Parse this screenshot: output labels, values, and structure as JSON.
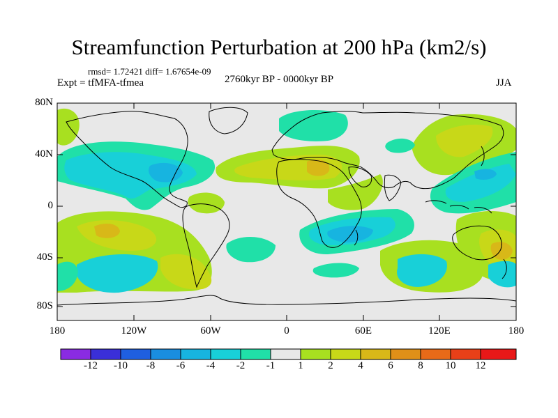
{
  "title": "Streamfunction Perturbation at 200 hPa (km2/s)",
  "stats": "rmsd= 1.72421 diff= 1.67654e-09",
  "experiment": "Expt = tfMFA-tfmea",
  "period": "2760kyr BP - 0000kyr BP",
  "season": "JJA",
  "y_axis_labels": [
    "80N",
    "40N",
    "0",
    "40S",
    "80S"
  ],
  "x_axis_labels": [
    "180",
    "120W",
    "60W",
    "0",
    "60E",
    "120E",
    "180"
  ],
  "colorbar": {
    "tick_labels": [
      "-12",
      "-10",
      "-8",
      "-6",
      "-4",
      "-2",
      "-1",
      "1",
      "2",
      "4",
      "6",
      "8",
      "10",
      "12"
    ],
    "colors": [
      "#8a2be2",
      "#3a2fd8",
      "#1f5fe0",
      "#1a8ee0",
      "#17b4e0",
      "#18d0d8",
      "#20e0a8",
      "#e8e8e8",
      "#a8e020",
      "#c8d818",
      "#d8b818",
      "#e09018",
      "#e86a18",
      "#e84018",
      "#e81818"
    ]
  },
  "field_colors": {
    "background": "#e8e8e8",
    "cyan_neg": "#18d0d8",
    "teal_neg": "#20e0a8",
    "blue_neg": "#17b4e0",
    "green_pos": "#a8e020",
    "olive_pos": "#c8d818",
    "orange_pos": "#d8b818",
    "deep_orange": "#e09018"
  }
}
